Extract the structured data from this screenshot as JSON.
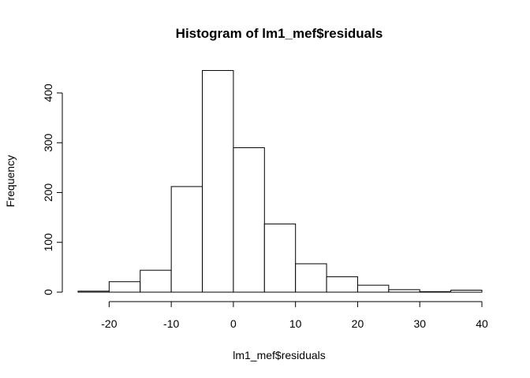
{
  "chart_data": {
    "type": "bar",
    "subtype": "histogram",
    "title": "Histogram of lm1_mef$residuals",
    "xlabel": "lm1_mef$residuals",
    "ylabel": "Frequency",
    "xlim": [
      -25,
      40
    ],
    "ylim": [
      0,
      450
    ],
    "bins": [
      {
        "x0": -25,
        "x1": -20,
        "count": 2
      },
      {
        "x0": -20,
        "x1": -15,
        "count": 21
      },
      {
        "x0": -15,
        "x1": -10,
        "count": 44
      },
      {
        "x0": -10,
        "x1": -5,
        "count": 212
      },
      {
        "x0": -5,
        "x1": 0,
        "count": 445
      },
      {
        "x0": 0,
        "x1": 5,
        "count": 290
      },
      {
        "x0": 5,
        "x1": 10,
        "count": 137
      },
      {
        "x0": 10,
        "x1": 15,
        "count": 57
      },
      {
        "x0": 15,
        "x1": 20,
        "count": 31
      },
      {
        "x0": 20,
        "x1": 25,
        "count": 14
      },
      {
        "x0": 25,
        "x1": 30,
        "count": 5
      },
      {
        "x0": 30,
        "x1": 35,
        "count": 1
      },
      {
        "x0": 35,
        "x1": 40,
        "count": 4
      }
    ],
    "x_ticks": [
      -20,
      -10,
      0,
      10,
      20,
      30,
      40
    ],
    "y_ticks": [
      0,
      100,
      200,
      300,
      400
    ],
    "bar_fill": "#ffffff",
    "bar_stroke": "#000000",
    "grid": false
  }
}
